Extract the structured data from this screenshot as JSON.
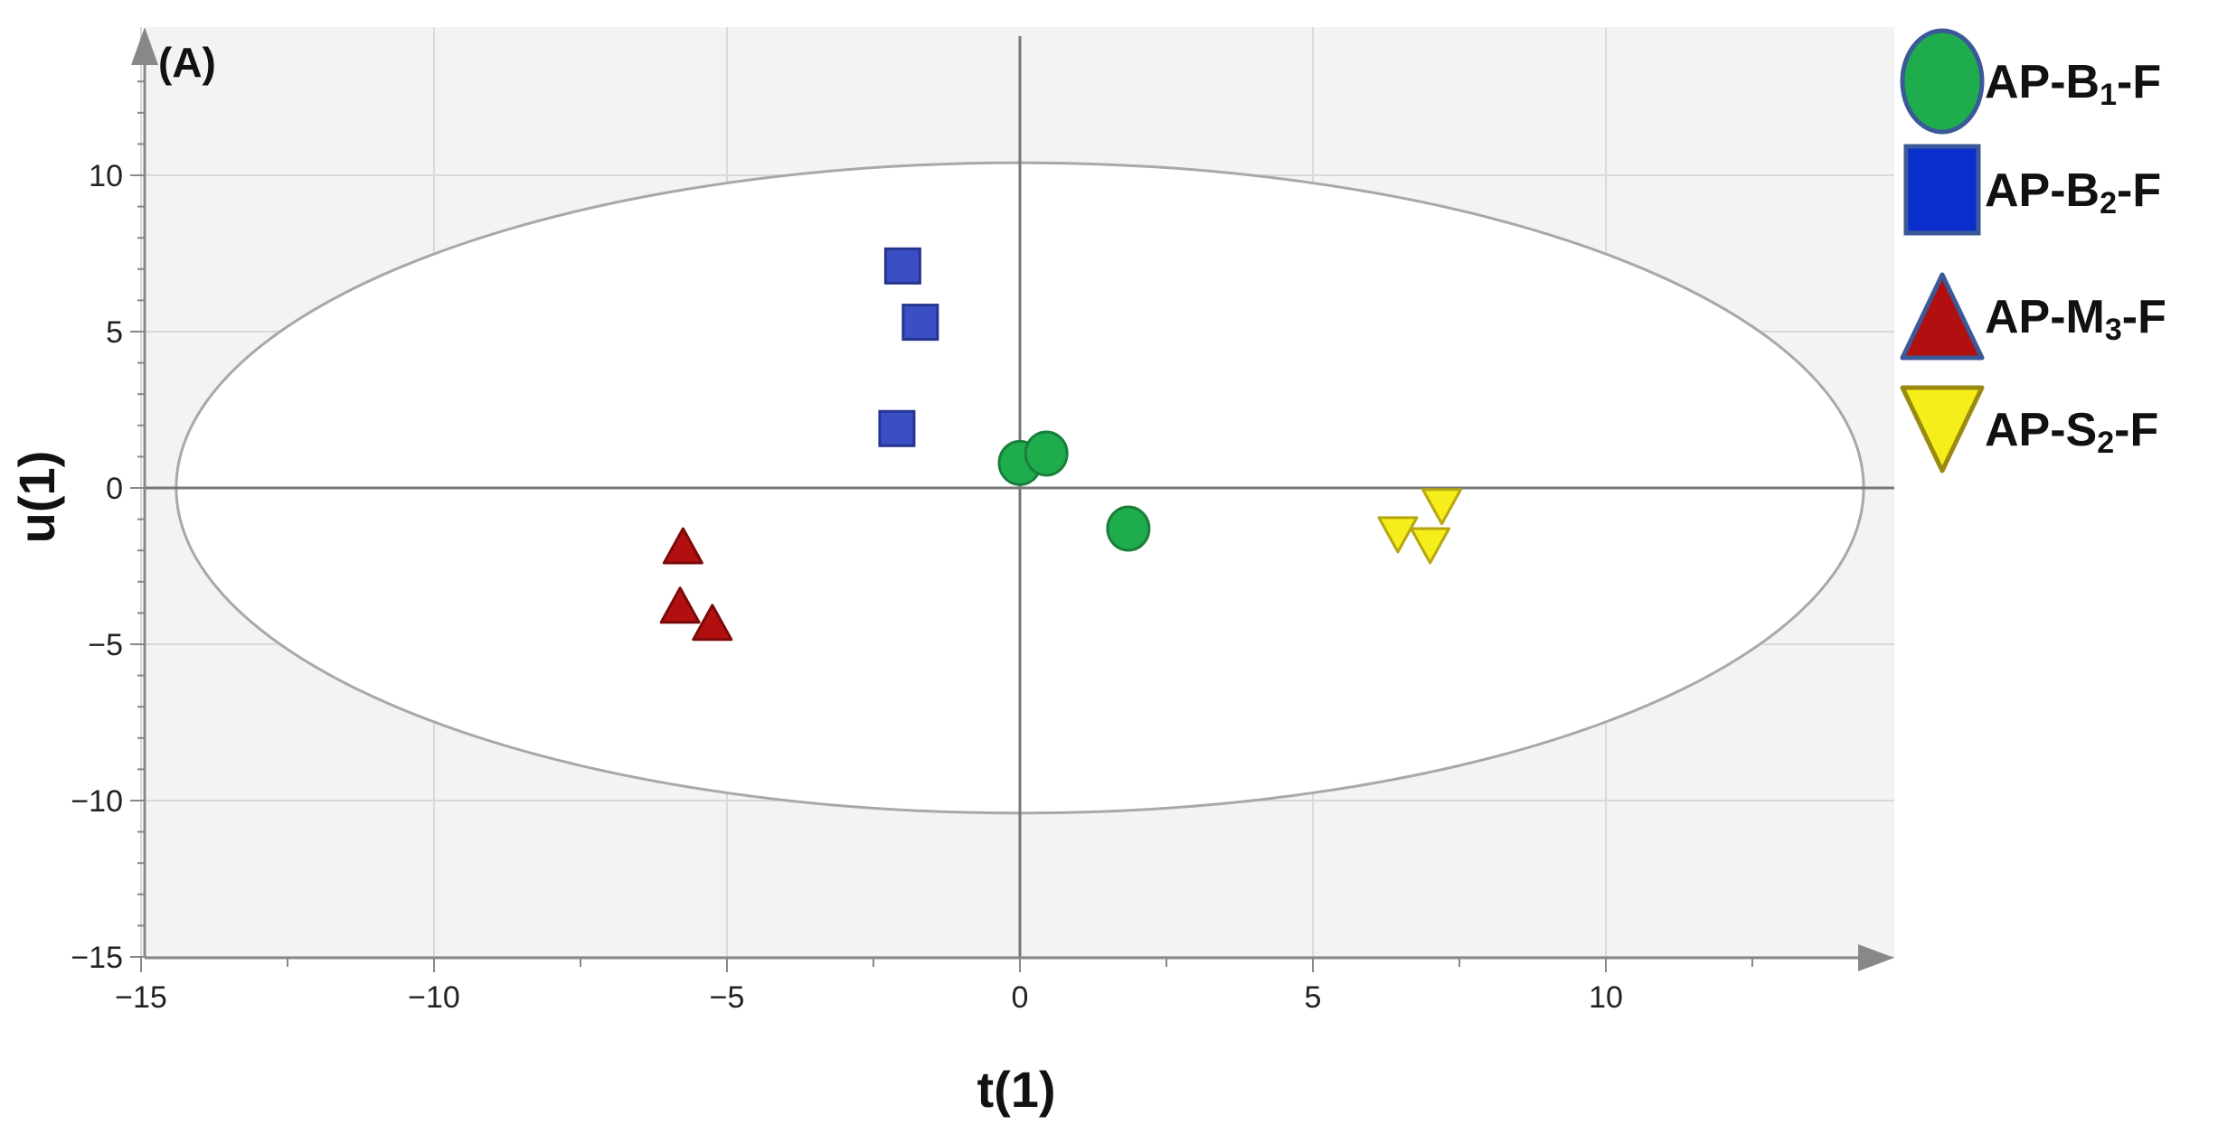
{
  "chart_data": {
    "type": "scatter",
    "panel_label": "(A)",
    "xlabel": "t(1)",
    "ylabel": "u(1)",
    "xlim": [
      -15,
      15
    ],
    "ylim": [
      -15,
      15
    ],
    "x_ticks": [
      -15,
      -10,
      -5,
      0,
      5,
      10
    ],
    "y_ticks": [
      -15,
      -10,
      -5,
      0,
      5,
      10
    ],
    "x_tick_labels": [
      "−15",
      "−10",
      "−5",
      "0",
      "5",
      "10"
    ],
    "y_tick_labels": [
      "−15",
      "−10",
      "−5",
      "0",
      "5",
      "10"
    ],
    "grid": true,
    "legend_position": "right",
    "ellipse": {
      "center": [
        0,
        0
      ],
      "semi_x": 14.4,
      "semi_y": 10.4
    },
    "series": [
      {
        "name": "AP-B1-F",
        "label_prefix": "AP-B",
        "label_sub": "1",
        "label_suffix": "-F",
        "marker": "circle",
        "color": "#1fac4c",
        "stroke": "#1a7f3a",
        "legend_stroke": "#3b5998",
        "points": [
          [
            0.0,
            0.8
          ],
          [
            0.45,
            1.1
          ],
          [
            1.85,
            -1.3
          ]
        ]
      },
      {
        "name": "AP-B2-F",
        "label_prefix": "AP-B",
        "label_sub": "2",
        "label_suffix": "-F",
        "marker": "square",
        "color": "#3a4fc4",
        "stroke": "#26348f",
        "legend_color": "#0a2fcc",
        "legend_stroke": "#3b5998",
        "points": [
          [
            -2.0,
            7.1
          ],
          [
            -1.7,
            5.3
          ],
          [
            -2.1,
            1.9
          ]
        ]
      },
      {
        "name": "AP-M3-F",
        "label_prefix": "AP-M",
        "label_sub": "3",
        "label_suffix": "-F",
        "marker": "triangle-up",
        "color": "#b21010",
        "stroke": "#7a0a0a",
        "legend_stroke": "#3b5998",
        "points": [
          [
            -5.75,
            -1.85
          ],
          [
            -5.8,
            -3.75
          ],
          [
            -5.25,
            -4.3
          ]
        ]
      },
      {
        "name": "AP-S2-F",
        "label_prefix": "AP-S",
        "label_sub": "2",
        "label_suffix": "-F",
        "marker": "triangle-down",
        "color": "#f5ee1a",
        "stroke": "#b6a712",
        "legend_stroke": "#9a8a10",
        "points": [
          [
            7.2,
            -0.6
          ],
          [
            6.45,
            -1.5
          ],
          [
            7.0,
            -1.85
          ]
        ]
      }
    ]
  }
}
